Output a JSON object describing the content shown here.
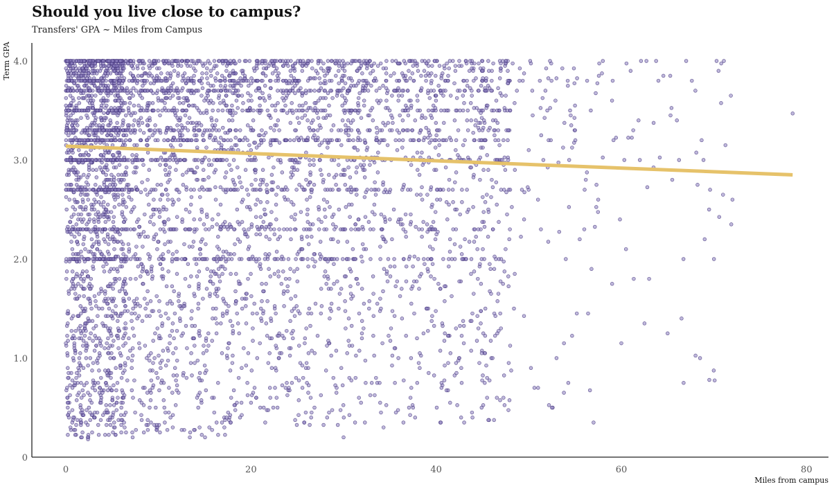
{
  "chart_data": {
    "type": "scatter",
    "title": "Should you live close to campus?",
    "subtitle": "Transfers' GPA ~ Miles from Campus",
    "xlabel": "Miles from campus",
    "ylabel": "Term GPA",
    "xlim": [
      -4,
      83
    ],
    "ylim": [
      0,
      4.2
    ],
    "x_ticks": [
      0,
      20,
      40,
      60,
      80
    ],
    "y_ticks": [
      0,
      1,
      2,
      3,
      4
    ],
    "y_tick_labels": [
      "0",
      "1.0",
      "2.0",
      "3.0",
      "4.0"
    ],
    "grid": false,
    "legend": "none",
    "point_color": "#4b3a82",
    "trend_color": "#e6c26a",
    "trend_line": {
      "x": [
        0,
        78.5
      ],
      "y": [
        3.14,
        2.85
      ]
    },
    "points": [
      [
        0.2,
        4.0
      ],
      [
        0.5,
        3.95
      ],
      [
        0.8,
        3.9
      ],
      [
        1.1,
        3.85
      ],
      [
        1.4,
        4.0
      ],
      [
        1.7,
        3.8
      ],
      [
        2.0,
        3.75
      ],
      [
        2.3,
        3.95
      ],
      [
        2.6,
        3.7
      ],
      [
        2.9,
        3.9
      ],
      [
        3.2,
        3.65
      ],
      [
        3.5,
        4.0
      ],
      [
        3.8,
        3.6
      ],
      [
        4.1,
        3.85
      ],
      [
        4.4,
        3.55
      ],
      [
        4.7,
        4.0
      ],
      [
        5.0,
        3.5
      ],
      [
        5.3,
        3.8
      ],
      [
        5.6,
        3.45
      ],
      [
        5.9,
        4.0
      ],
      [
        6.2,
        3.4
      ],
      [
        0.3,
        3.5
      ],
      [
        0.9,
        3.3
      ],
      [
        1.5,
        3.2
      ],
      [
        2.1,
        3.0
      ],
      [
        2.7,
        3.1
      ],
      [
        3.3,
        2.9
      ],
      [
        3.9,
        3.0
      ],
      [
        4.5,
        2.8
      ],
      [
        5.1,
        3.0
      ],
      [
        5.7,
        2.7
      ],
      [
        6.3,
        3.0
      ],
      [
        0.4,
        2.6
      ],
      [
        1.0,
        2.5
      ],
      [
        1.6,
        2.4
      ],
      [
        2.2,
        2.3
      ],
      [
        2.8,
        2.2
      ],
      [
        3.4,
        2.1
      ],
      [
        4.0,
        2.0
      ],
      [
        4.6,
        2.0
      ],
      [
        5.2,
        1.9
      ],
      [
        5.8,
        1.8
      ],
      [
        0.6,
        1.7
      ],
      [
        1.2,
        1.6
      ],
      [
        1.8,
        1.5
      ],
      [
        2.4,
        1.4
      ],
      [
        3.0,
        1.3
      ],
      [
        3.6,
        1.2
      ],
      [
        4.2,
        1.1
      ],
      [
        4.8,
        1.0
      ],
      [
        5.4,
        0.9
      ],
      [
        0.3,
        0.85
      ],
      [
        1.0,
        0.75
      ],
      [
        1.7,
        0.6
      ],
      [
        2.5,
        0.5
      ],
      [
        3.1,
        0.4
      ],
      [
        0.5,
        0.3
      ],
      [
        1.8,
        0.25
      ],
      [
        2.4,
        0.18
      ],
      [
        6.0,
        0.5
      ],
      [
        6.5,
        0.25
      ],
      [
        0.2,
        0.55
      ],
      [
        0.8,
        1.0
      ],
      [
        2.2,
        1.0
      ],
      [
        3.5,
        1.0
      ],
      [
        5.5,
        0.55
      ],
      [
        6.8,
        1.2
      ],
      [
        7.2,
        2.5
      ],
      [
        7.5,
        3.3
      ],
      [
        8.2,
        3.8
      ],
      [
        9.0,
        2.9
      ],
      [
        9.5,
        2.2
      ],
      [
        10.0,
        3.6
      ],
      [
        10.5,
        1.8
      ],
      [
        11.0,
        3.2
      ],
      [
        11.5,
        2.6
      ],
      [
        12.0,
        4.0
      ],
      [
        12.5,
        1.5
      ],
      [
        13.0,
        3.5
      ],
      [
        13.5,
        2.9
      ],
      [
        14.0,
        3.9
      ],
      [
        14.5,
        2.4
      ],
      [
        15.0,
        3.3
      ],
      [
        15.5,
        0.3
      ],
      [
        16.0,
        3.7
      ],
      [
        16.5,
        1.9
      ],
      [
        17.0,
        3.0
      ],
      [
        17.5,
        2.7
      ],
      [
        12.2,
        3.4
      ],
      [
        13.2,
        3.6
      ],
      [
        14.2,
        3.1
      ],
      [
        15.2,
        3.5
      ],
      [
        16.2,
        3.2
      ],
      [
        17.2,
        3.8
      ],
      [
        12.8,
        2.0
      ],
      [
        14.8,
        2.0
      ],
      [
        16.8,
        2.0
      ],
      [
        13.8,
        1.2
      ],
      [
        15.8,
        0.6
      ],
      [
        11.8,
        0.9
      ],
      [
        18.0,
        3.4
      ],
      [
        18.5,
        2.5
      ],
      [
        19.0,
        3.9
      ],
      [
        19.5,
        1.6
      ],
      [
        20.0,
        3.1
      ],
      [
        20.5,
        2.8
      ],
      [
        21.0,
        0.5
      ],
      [
        21.5,
        3.6
      ],
      [
        22.0,
        2.2
      ],
      [
        22.5,
        3.3
      ],
      [
        23.0,
        1.0
      ],
      [
        23.5,
        3.8
      ],
      [
        24.0,
        2.6
      ],
      [
        24.5,
        3.0
      ],
      [
        25.0,
        1.9
      ],
      [
        25.5,
        3.5
      ],
      [
        26.0,
        2.3
      ],
      [
        26.5,
        0.4
      ],
      [
        27.0,
        3.2
      ],
      [
        27.5,
        2.9
      ],
      [
        28.0,
        3.7
      ],
      [
        28.5,
        1.4
      ],
      [
        29.0,
        3.0
      ],
      [
        29.5,
        2.5
      ],
      [
        30.0,
        0.2
      ],
      [
        30.5,
        3.4
      ],
      [
        31.0,
        2.1
      ],
      [
        31.5,
        3.9
      ],
      [
        32.0,
        1.7
      ],
      [
        32.5,
        3.1
      ],
      [
        33.0,
        2.7
      ],
      [
        33.5,
        0.8
      ],
      [
        34.0,
        3.6
      ],
      [
        34.5,
        2.4
      ],
      [
        35.0,
        3.3
      ],
      [
        35.5,
        1.1
      ],
      [
        36.0,
        3.8
      ],
      [
        36.5,
        2.0
      ],
      [
        37.0,
        3.0
      ],
      [
        37.5,
        0.5
      ],
      [
        38.0,
        3.5
      ],
      [
        38.5,
        2.6
      ],
      [
        39.0,
        1.5
      ],
      [
        39.5,
        3.2
      ],
      [
        40.0,
        2.9
      ],
      [
        40.5,
        0.35
      ],
      [
        41.0,
        3.7
      ],
      [
        41.5,
        2.2
      ],
      [
        42.0,
        3.4
      ],
      [
        42.5,
        1.0
      ],
      [
        43.0,
        3.0
      ],
      [
        43.5,
        2.5
      ],
      [
        44.0,
        3.9
      ],
      [
        44.5,
        1.8
      ],
      [
        45.0,
        3.3
      ],
      [
        45.5,
        0.6
      ],
      [
        46.0,
        2.8
      ],
      [
        46.5,
        3.6
      ],
      [
        47.0,
        1.3
      ],
      [
        47.5,
        2.1
      ],
      [
        48.0,
        3.5
      ],
      [
        48.5,
        2.9
      ],
      [
        49.0,
        3.8
      ],
      [
        49.5,
        2.4
      ],
      [
        50.0,
        3.1
      ],
      [
        51.0,
        2.6
      ],
      [
        52.0,
        3.5
      ],
      [
        52.5,
        0.5
      ],
      [
        53.0,
        1.0
      ],
      [
        54.0,
        2.0
      ],
      [
        55.0,
        3.3
      ],
      [
        56.0,
        2.3
      ],
      [
        57.0,
        0.35
      ],
      [
        57.5,
        2.6
      ],
      [
        58.0,
        4.0
      ],
      [
        59.0,
        3.6
      ],
      [
        60.0,
        1.15
      ],
      [
        60.5,
        2.1
      ],
      [
        61.0,
        3.9
      ],
      [
        62.0,
        3.0
      ],
      [
        62.5,
        1.35
      ],
      [
        63.0,
        1.8
      ],
      [
        64.0,
        3.8
      ],
      [
        65.0,
        1.25
      ],
      [
        65.5,
        2.8
      ],
      [
        66.0,
        3.4
      ],
      [
        66.5,
        1.4
      ],
      [
        67.0,
        4.0
      ],
      [
        68.0,
        3.7
      ],
      [
        68.5,
        1.0
      ],
      [
        69.0,
        2.2
      ],
      [
        69.5,
        0.78
      ],
      [
        70.0,
        2.0
      ],
      [
        70.5,
        3.9
      ],
      [
        72.0,
        2.6
      ],
      [
        78.5,
        3.47
      ],
      [
        4.0,
        2.45
      ],
      [
        5.0,
        2.3
      ],
      [
        6.0,
        2.1
      ],
      [
        2.0,
        1.8
      ]
    ],
    "dense_regions": [
      {
        "x": [
          0,
          6.5
        ],
        "y": [
          0.2,
          4.0
        ],
        "count": 1700
      },
      {
        "x": [
          6.5,
          18
        ],
        "y": [
          0.2,
          4.0
        ],
        "count": 1200
      },
      {
        "x": [
          18,
          32
        ],
        "y": [
          0.3,
          4.0
        ],
        "count": 1100
      },
      {
        "x": [
          32,
          48
        ],
        "y": [
          0.3,
          4.0
        ],
        "count": 900
      },
      {
        "x": [
          48,
          58
        ],
        "y": [
          0.5,
          4.0
        ],
        "count": 90
      },
      {
        "x": [
          58,
          72
        ],
        "y": [
          0.7,
          4.0
        ],
        "count": 45
      }
    ]
  }
}
